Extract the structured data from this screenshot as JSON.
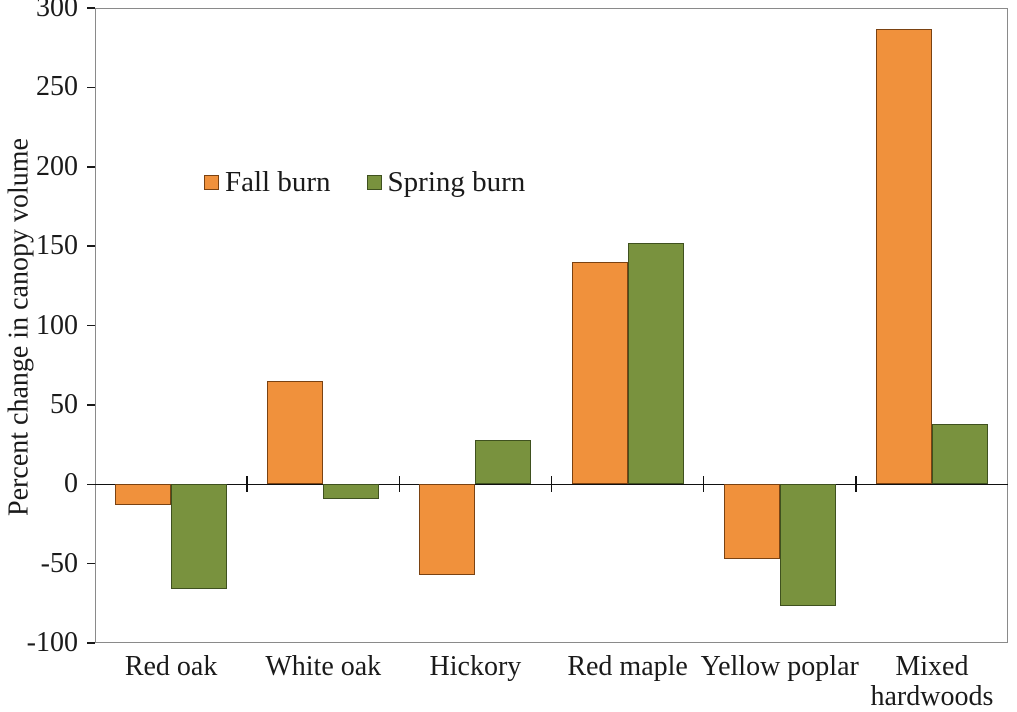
{
  "chart_data": {
    "type": "bar",
    "title": "",
    "xlabel": "",
    "ylabel": "Percent change in canopy volume",
    "ylim": [
      -100,
      300
    ],
    "yticks": [
      300,
      250,
      200,
      150,
      100,
      50,
      0,
      -50,
      -100
    ],
    "grid": false,
    "legend_position": "inside-top-left",
    "categories": [
      "Red oak",
      "White oak",
      "Hickory",
      "Red maple",
      "Yellow poplar",
      "Mixed\nhardwoods"
    ],
    "series": [
      {
        "name": "Fall burn",
        "fill_color": "#F0913C",
        "border_color": "#7A4212",
        "values": [
          -13,
          65,
          -57,
          140,
          -47,
          287
        ]
      },
      {
        "name": "Spring burn",
        "fill_color": "#79923E",
        "border_color": "#3F511F",
        "values": [
          -66,
          -9,
          28,
          152,
          -77,
          38
        ]
      }
    ]
  },
  "style_colors": {
    "frame": "#8a8a8a",
    "axis": "#111111",
    "text": "#1a1a1a",
    "background": "#ffffff"
  }
}
